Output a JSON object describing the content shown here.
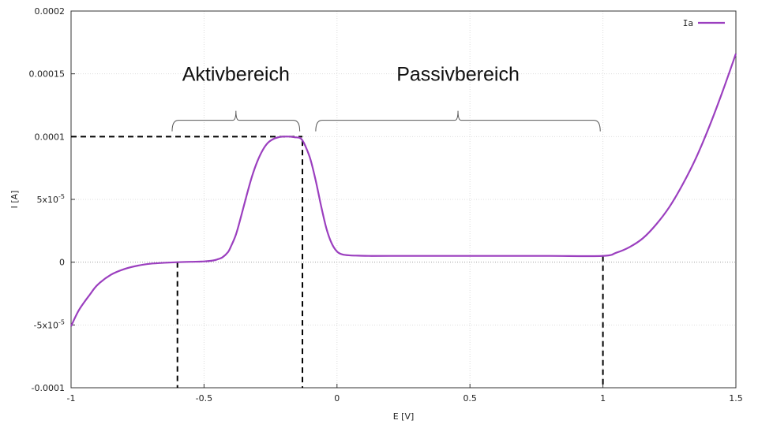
{
  "chart_data": {
    "type": "line",
    "xlabel": "E [V]",
    "ylabel": "I [A]",
    "xlim": [
      -1,
      1.5
    ],
    "ylim": [
      -0.0001,
      0.0002
    ],
    "grid": true,
    "legend_position": "top-right",
    "x_ticks": [
      {
        "value": -1,
        "label": "-1"
      },
      {
        "value": -0.5,
        "label": "-0.5"
      },
      {
        "value": 0,
        "label": "0"
      },
      {
        "value": 0.5,
        "label": "0.5"
      },
      {
        "value": 1,
        "label": "1"
      },
      {
        "value": 1.5,
        "label": "1.5"
      }
    ],
    "y_ticks": [
      {
        "value": -0.0001,
        "label": "-0.0001"
      },
      {
        "value": -5e-05,
        "label": "-5x10",
        "exp": "-5"
      },
      {
        "value": 0,
        "label": "0"
      },
      {
        "value": 5e-05,
        "label": "5x10",
        "exp": "-5"
      },
      {
        "value": 0.0001,
        "label": "0.0001"
      },
      {
        "value": 0.00015,
        "label": "0.00015"
      },
      {
        "value": 0.0002,
        "label": "0.0002"
      }
    ],
    "series": [
      {
        "name": "Ia",
        "color": "#9b3fbf",
        "x": [
          -1.0,
          -0.97,
          -0.93,
          -0.9,
          -0.85,
          -0.8,
          -0.75,
          -0.7,
          -0.65,
          -0.6,
          -0.55,
          -0.5,
          -0.47,
          -0.45,
          -0.43,
          -0.41,
          -0.4,
          -0.38,
          -0.36,
          -0.34,
          -0.32,
          -0.3,
          -0.28,
          -0.26,
          -0.24,
          -0.22,
          -0.2,
          -0.18,
          -0.16,
          -0.14,
          -0.13,
          -0.12,
          -0.1,
          -0.08,
          -0.06,
          -0.04,
          -0.02,
          0.0,
          0.02,
          0.05,
          0.08,
          0.12,
          0.2,
          0.4,
          0.6,
          0.8,
          1.0,
          1.05,
          1.1,
          1.15,
          1.2,
          1.25,
          1.3,
          1.35,
          1.4,
          1.45,
          1.5
        ],
        "y": [
          -5.1e-05,
          -3.8e-05,
          -2.6e-05,
          -1.8e-05,
          -1e-05,
          -5.5e-06,
          -2.8e-06,
          -1.2e-06,
          -5e-07,
          0.0,
          3e-07,
          6e-07,
          1.2e-06,
          2.2e-06,
          4e-06,
          8e-06,
          1.2e-05,
          2.2e-05,
          3.7e-05,
          5.3e-05,
          6.8e-05,
          8e-05,
          8.9e-05,
          9.5e-05,
          9.8e-05,
          9.95e-05,
          0.0001,
          0.0001,
          9.95e-05,
          9.9e-05,
          9.7e-05,
          9.3e-05,
          8.2e-05,
          6.5e-05,
          4.5e-05,
          2.7e-05,
          1.5e-05,
          8.5e-06,
          6.2e-06,
          5.4e-06,
          5.2e-06,
          5e-06,
          5e-06,
          5e-06,
          5e-06,
          5e-06,
          5e-06,
          7.5e-06,
          1.2e-05,
          1.9e-05,
          3e-05,
          4.4e-05,
          6.2e-05,
          8.3e-05,
          0.000108,
          0.000136,
          0.000166
        ]
      }
    ],
    "reference_lines": {
      "y_value": 0.0001,
      "vertical_x": [
        -0.6,
        -0.13,
        1.0
      ],
      "h_from_x": -1,
      "h_to_x": -0.13,
      "v_to_y_from_curve": true
    },
    "annotations": [
      {
        "text": "Aktivbereich",
        "x_from": -0.62,
        "x_to": -0.14,
        "text_y": 0.00015,
        "brace_y": 0.000113
      },
      {
        "text": "Passivbereich",
        "x_from": -0.08,
        "x_to": 0.99,
        "text_y": 0.00015,
        "brace_y": 0.000113
      }
    ]
  }
}
